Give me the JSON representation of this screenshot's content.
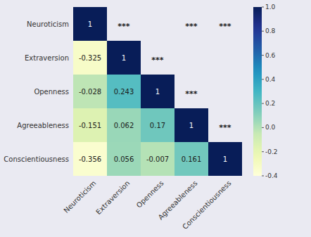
{
  "chart_data": {
    "type": "heatmap",
    "categories": [
      "Neuroticism",
      "Extraversion",
      "Openness",
      "Agreeableness",
      "Conscientiousness"
    ],
    "matrix": [
      [
        1.0,
        null,
        null,
        null,
        null
      ],
      [
        -0.325,
        1.0,
        null,
        null,
        null
      ],
      [
        -0.028,
        0.243,
        1.0,
        null,
        null
      ],
      [
        -0.151,
        0.062,
        0.17,
        1.0,
        null
      ],
      [
        -0.356,
        0.056,
        -0.007,
        0.161,
        1.0
      ]
    ],
    "significance": [
      [
        null,
        "***",
        null,
        "***",
        "***"
      ],
      [
        null,
        null,
        "***",
        null,
        null
      ],
      [
        null,
        null,
        null,
        "***",
        null
      ],
      [
        null,
        null,
        null,
        null,
        "***"
      ],
      [
        null,
        null,
        null,
        null,
        null
      ]
    ],
    "data_labels": true,
    "colorbar_range": [
      -0.4,
      1.0
    ],
    "colorbar_ticks": [
      -0.4,
      -0.2,
      {
        "value": 0.0,
        "label": "0.0"
      },
      0.2,
      0.4,
      0.6,
      0.8,
      {
        "value": 1.0,
        "label": "1.0"
      }
    ]
  }
}
